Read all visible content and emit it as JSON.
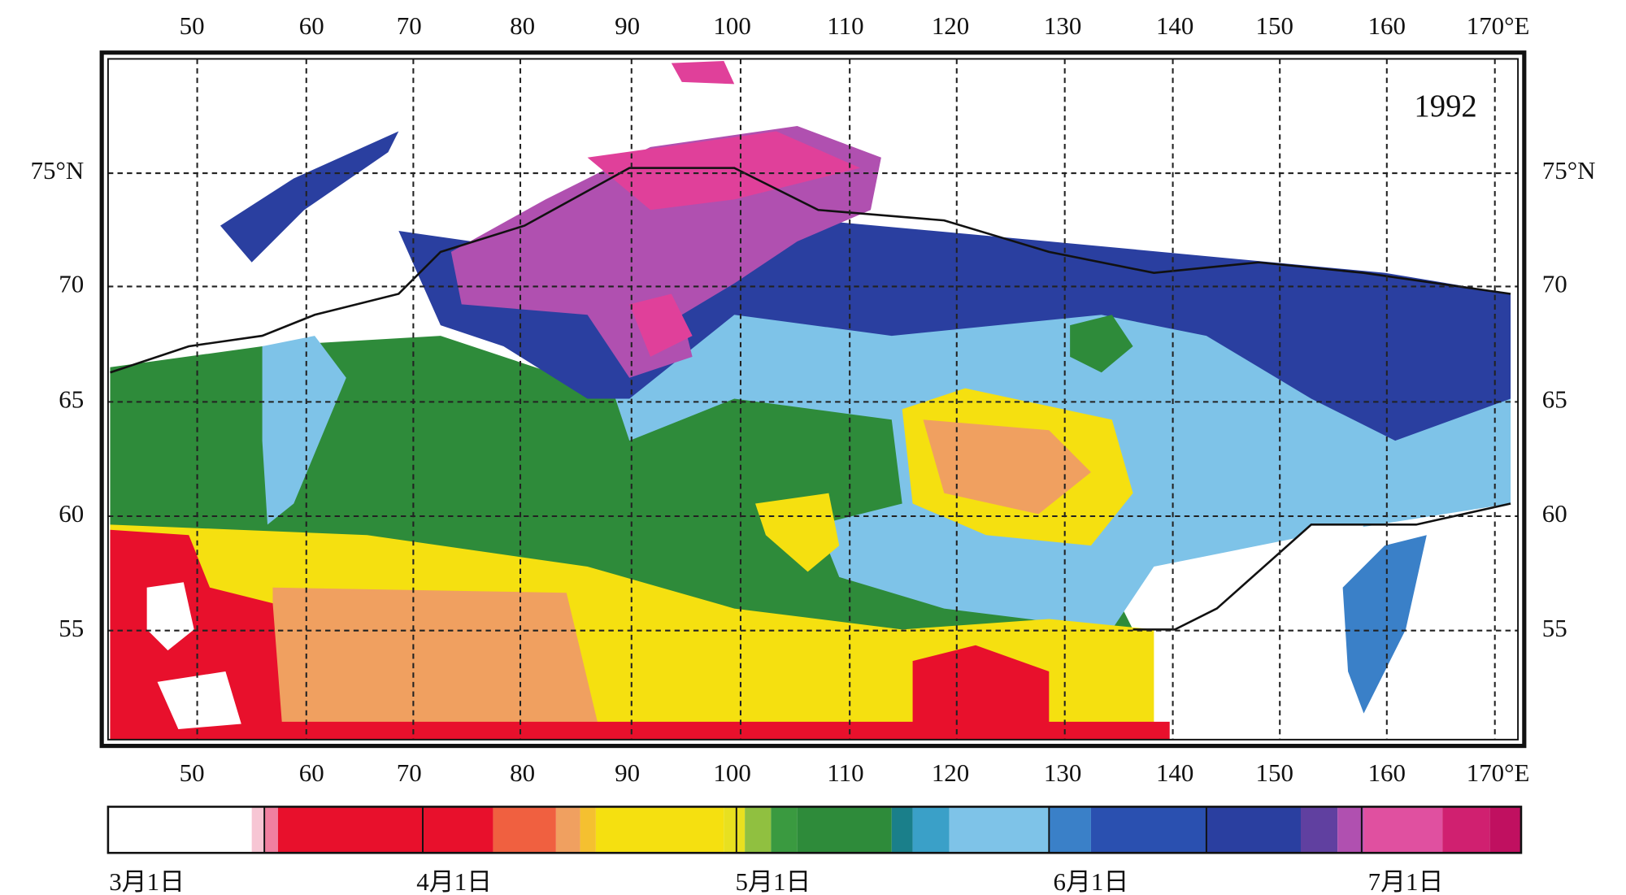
{
  "map": {
    "year": "1992",
    "top_lon_labels": [
      "50",
      "60",
      "70",
      "80",
      "90",
      "100",
      "110",
      "120",
      "130",
      "140",
      "150",
      "160",
      "170°E"
    ],
    "bottom_lon_labels": [
      "50",
      "60",
      "70",
      "80",
      "90",
      "100",
      "110",
      "120",
      "130",
      "140",
      "150",
      "160",
      "170°E"
    ],
    "left_lat_labels": [
      "75°N",
      "70",
      "65",
      "60",
      "55"
    ],
    "right_lat_labels": [
      "75°N",
      "70",
      "65",
      "60",
      "55"
    ]
  },
  "colorbar": {
    "labels": [
      "3月1日",
      "4月1日",
      "5月1日",
      "6月1日",
      "7月1日"
    ]
  }
}
